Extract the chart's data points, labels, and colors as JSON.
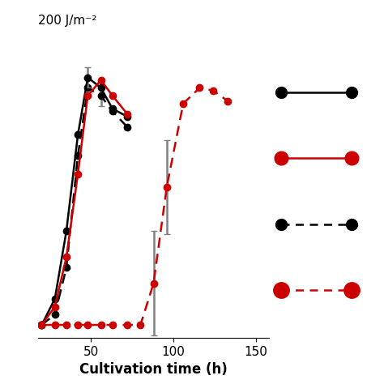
{
  "title": "200 J/m⁻²",
  "xlabel": "Cultivation time (h)",
  "xlim": [
    18,
    158
  ],
  "ylim": [
    -0.03,
    1.12
  ],
  "xticks": [
    50,
    100,
    150
  ],
  "background_color": "#ffffff",
  "solid_black_x": [
    20,
    28,
    35,
    42,
    48,
    56,
    63,
    72
  ],
  "solid_black_y": [
    0.02,
    0.12,
    0.38,
    0.75,
    0.97,
    0.93,
    0.85,
    0.82
  ],
  "solid_black_yerr": [
    0,
    0,
    0,
    0,
    0.04,
    0,
    0,
    0
  ],
  "solid_red_x": [
    20,
    28,
    35,
    42,
    48,
    56,
    63,
    72
  ],
  "solid_red_y": [
    0.02,
    0.09,
    0.28,
    0.6,
    0.9,
    0.96,
    0.9,
    0.83
  ],
  "solid_red_yerr": [
    0,
    0,
    0,
    0,
    0,
    0,
    0,
    0
  ],
  "dashed_black_x": [
    20,
    28,
    35,
    42,
    48,
    56,
    63,
    72
  ],
  "dashed_black_y": [
    0.02,
    0.06,
    0.24,
    0.67,
    0.93,
    0.9,
    0.84,
    0.78
  ],
  "dashed_black_yerr": [
    0,
    0,
    0,
    0,
    0,
    0.04,
    0,
    0
  ],
  "dashed_red_x": [
    20,
    28,
    35,
    42,
    48,
    56,
    63,
    72,
    80,
    88,
    96,
    106,
    116,
    124,
    133
  ],
  "dashed_red_y": [
    0.02,
    0.02,
    0.02,
    0.02,
    0.02,
    0.02,
    0.02,
    0.02,
    0.02,
    0.18,
    0.55,
    0.87,
    0.93,
    0.92,
    0.88
  ],
  "dashed_red_yerr": [
    0,
    0,
    0,
    0,
    0,
    0,
    0,
    0,
    0,
    0.2,
    0.18,
    0,
    0,
    0,
    0
  ],
  "line_color_black": "#000000",
  "line_color_red": "#cc0000",
  "marker_size": 6,
  "legend_marker_size_solid": 10,
  "legend_marker_size_dashed": 12,
  "line_width": 1.8
}
